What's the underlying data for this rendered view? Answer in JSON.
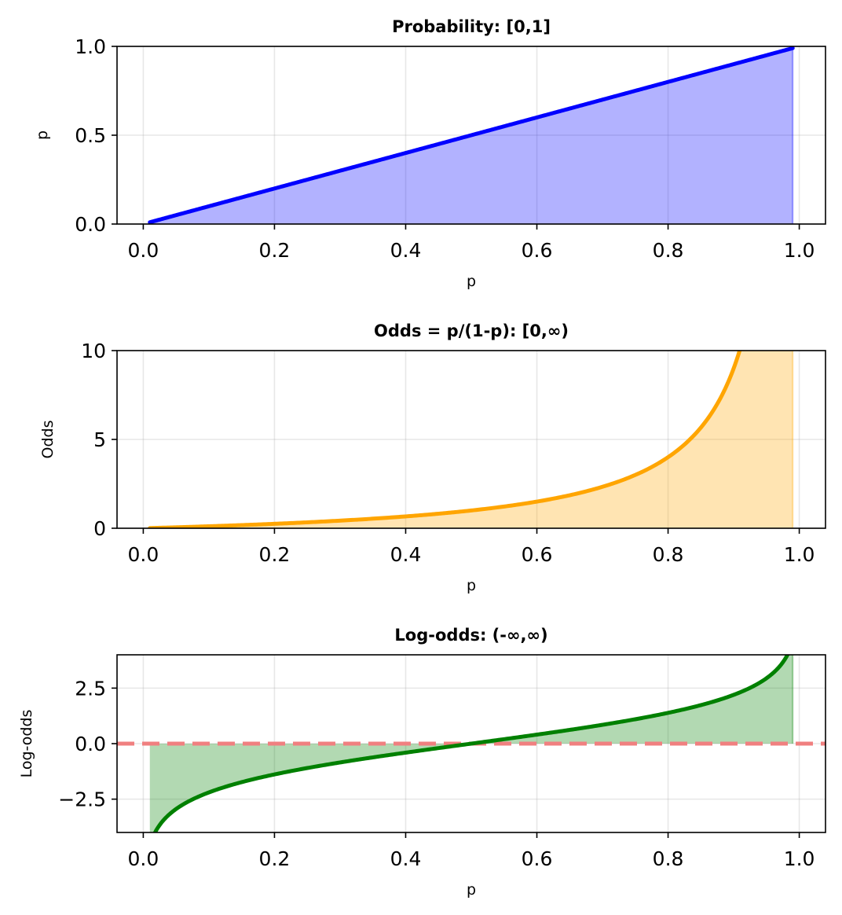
{
  "chart_data": [
    {
      "type": "area",
      "title": "Probability: [0,1]",
      "xlabel": "p",
      "ylabel": "p",
      "xlim": [
        -0.04,
        1.04
      ],
      "ylim": [
        0,
        1
      ],
      "xticks": [
        0.0,
        0.2,
        0.4,
        0.6,
        0.8,
        1.0
      ],
      "xtick_labels": [
        "0.0",
        "0.2",
        "0.4",
        "0.6",
        "0.8",
        "1.0"
      ],
      "yticks": [
        0,
        0.5,
        1.0
      ],
      "ytick_labels": [
        "0.0",
        "0.5",
        "1.0"
      ],
      "grid": true,
      "series": [
        {
          "function": "p",
          "x_range": [
            0.01,
            0.99
          ],
          "color": "#0000ff",
          "fill_color": "#0000ff",
          "fill_alpha": 0.3
        }
      ]
    },
    {
      "type": "area",
      "title": "Odds = p/(1-p): [0,∞)",
      "xlabel": "p",
      "ylabel": "Odds",
      "xlim": [
        -0.04,
        1.04
      ],
      "ylim": [
        0,
        10
      ],
      "xticks": [
        0.0,
        0.2,
        0.4,
        0.6,
        0.8,
        1.0
      ],
      "xtick_labels": [
        "0.0",
        "0.2",
        "0.4",
        "0.6",
        "0.8",
        "1.0"
      ],
      "yticks": [
        0,
        5,
        10
      ],
      "ytick_labels": [
        "0",
        "5",
        "10"
      ],
      "grid": true,
      "series": [
        {
          "function": "odds",
          "x_range": [
            0.01,
            0.99
          ],
          "color": "#ffa500",
          "fill_color": "#ffa500",
          "fill_alpha": 0.3
        }
      ]
    },
    {
      "type": "area",
      "title": "Log-odds: (-∞,∞)",
      "xlabel": "p",
      "ylabel": "Log-odds",
      "xlim": [
        -0.04,
        1.04
      ],
      "ylim": [
        -4,
        4
      ],
      "xticks": [
        0.0,
        0.2,
        0.4,
        0.6,
        0.8,
        1.0
      ],
      "xtick_labels": [
        "0.0",
        "0.2",
        "0.4",
        "0.6",
        "0.8",
        "1.0"
      ],
      "yticks": [
        -2.5,
        0.0,
        2.5
      ],
      "ytick_labels": [
        "−2.5",
        "0.0",
        "2.5"
      ],
      "grid": true,
      "series": [
        {
          "function": "logodds",
          "x_range": [
            0.01,
            0.99
          ],
          "color": "#008000",
          "fill_color": "#008000",
          "fill_alpha": 0.3
        }
      ],
      "reference_line": {
        "y": 0,
        "color": "#f08080",
        "style": "dashed"
      }
    }
  ]
}
